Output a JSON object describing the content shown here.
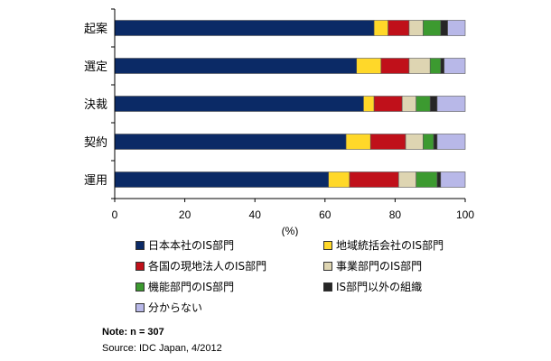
{
  "chart_data": {
    "type": "bar",
    "orientation": "horizontal",
    "stacked": true,
    "categories": [
      "起案",
      "選定",
      "決裁",
      "契約",
      "運用"
    ],
    "series": [
      {
        "name": "日本本社のIS部門",
        "color": "#0b2a66",
        "values": [
          74,
          69,
          71,
          66,
          61
        ]
      },
      {
        "name": "地域統括会社のIS部門",
        "color": "#ffd829",
        "values": [
          4,
          7,
          3,
          7,
          6
        ]
      },
      {
        "name": "各国の現地法人のIS部門",
        "color": "#c0101a",
        "values": [
          6,
          8,
          8,
          10,
          14
        ]
      },
      {
        "name": "事業部門のIS部門",
        "color": "#ded5b2",
        "values": [
          4,
          6,
          4,
          5,
          5
        ]
      },
      {
        "name": "機能部門のIS部門",
        "color": "#3c9a30",
        "values": [
          5,
          3,
          4,
          3,
          6
        ]
      },
      {
        "name": "IS部門以外の組織",
        "color": "#262626",
        "values": [
          2,
          1,
          2,
          1,
          1
        ]
      },
      {
        "name": "分からない",
        "color": "#b8b8e8",
        "values": [
          5,
          6,
          8,
          8,
          7
        ]
      }
    ],
    "xlabel": "(%)",
    "xlim": [
      0,
      100
    ],
    "xticks": [
      0,
      20,
      40,
      60,
      80,
      100
    ],
    "grid": false,
    "legend_position": "bottom"
  },
  "legend_items": [
    {
      "label": "日本本社のIS部門",
      "color": "#0b2a66"
    },
    {
      "label": "地域統括会社のIS部門",
      "color": "#ffd829"
    },
    {
      "label": "各国の現地法人のIS部門",
      "color": "#c0101a"
    },
    {
      "label": "事業部門のIS部門",
      "color": "#ded5b2"
    },
    {
      "label": "機能部門のIS部門",
      "color": "#3c9a30"
    },
    {
      "label": "IS部門以外の組織",
      "color": "#262626"
    },
    {
      "label": "分からない",
      "color": "#b8b8e8"
    }
  ],
  "note": "Note: n = 307",
  "source": "Source: IDC Japan, 4/2012"
}
